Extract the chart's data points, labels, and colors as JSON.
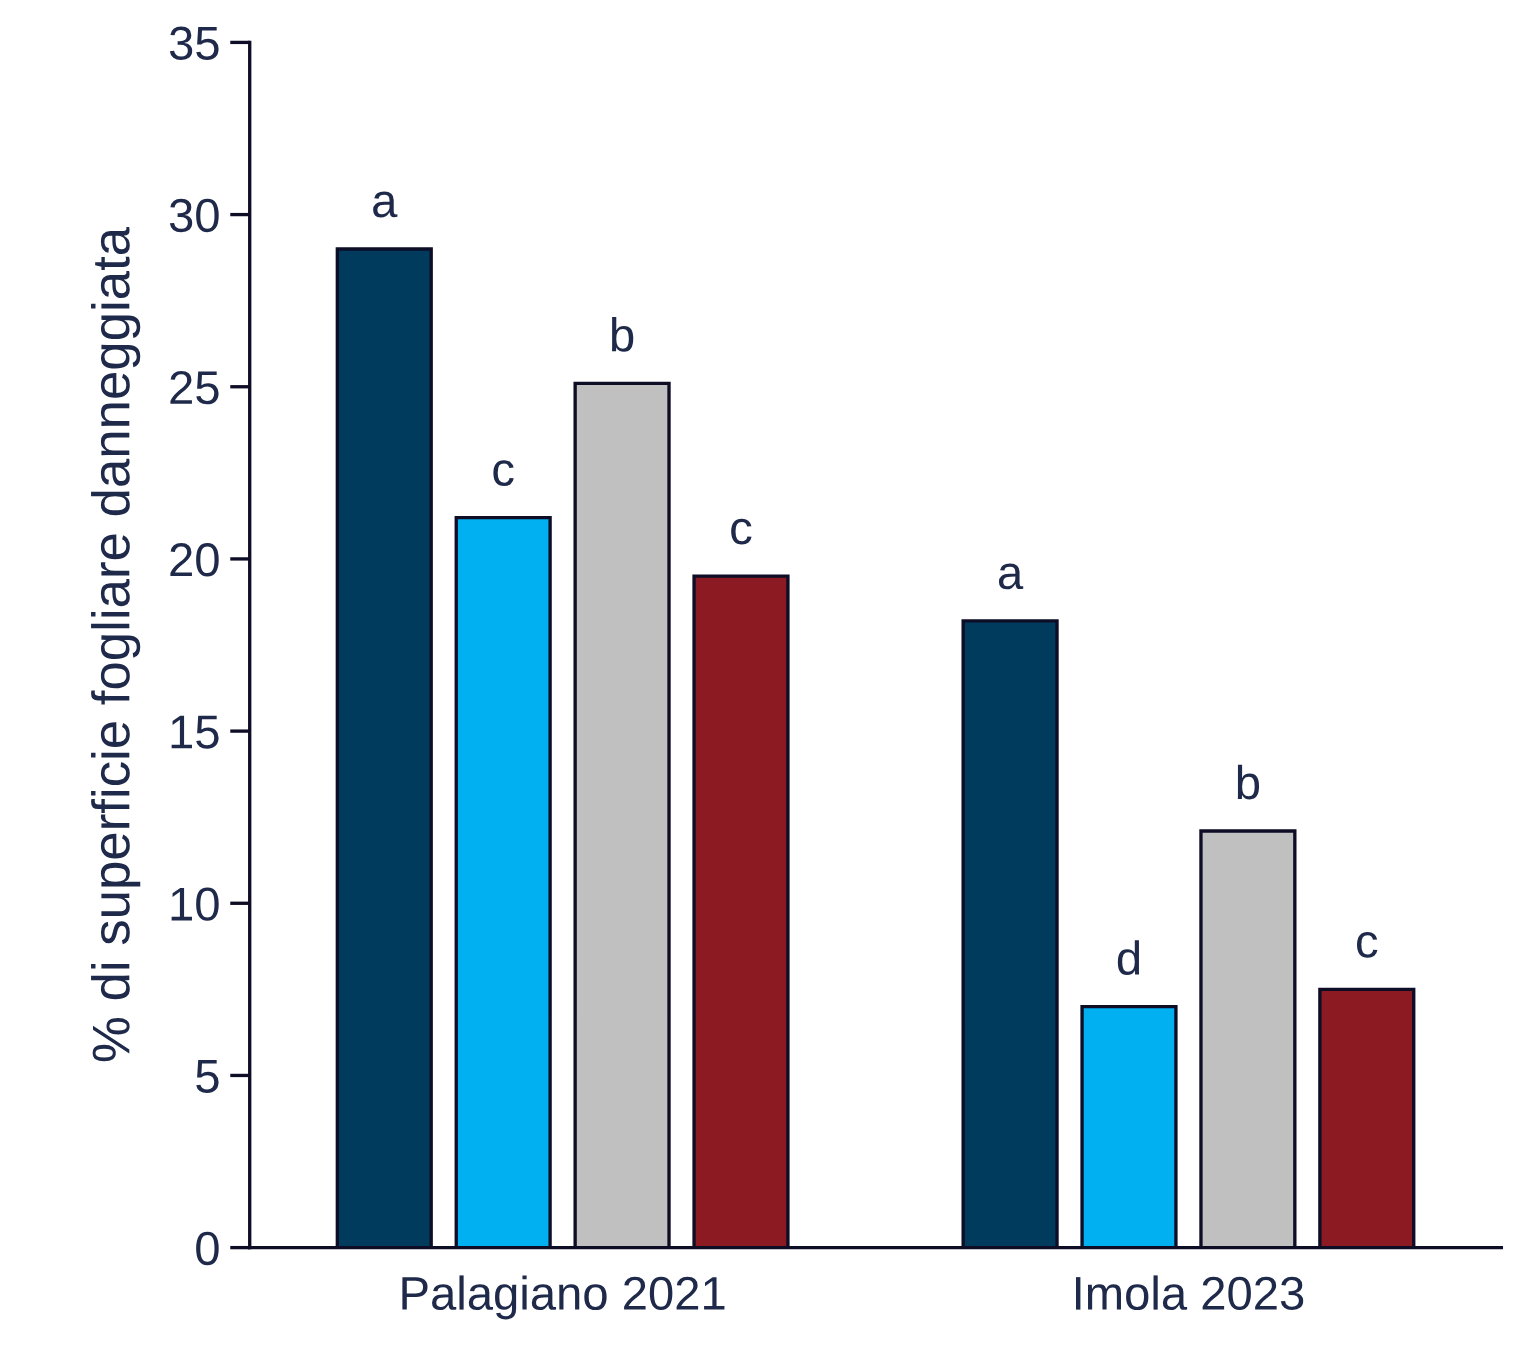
{
  "chart_data": {
    "type": "bar",
    "ylabel": "% di superficie fogliare danneggiata",
    "categories": [
      "Palagiano 2021",
      "Imola 2023"
    ],
    "series": [
      {
        "color": "#003a5c",
        "values": [
          29.0,
          18.2
        ],
        "value_labels": [
          "a",
          "a"
        ]
      },
      {
        "color": "#00b0f0",
        "values": [
          21.2,
          7.0
        ],
        "value_labels": [
          "c",
          "d"
        ]
      },
      {
        "color": "#c0c0c0",
        "values": [
          25.1,
          12.1
        ],
        "value_labels": [
          "b",
          "b"
        ]
      },
      {
        "color": "#8b1a22",
        "values": [
          19.5,
          7.5
        ],
        "value_labels": [
          "c",
          "c"
        ]
      }
    ],
    "ylim": [
      0,
      35
    ],
    "yticks": [
      0,
      5,
      10,
      15,
      20,
      25,
      30,
      35
    ],
    "grid": false
  }
}
